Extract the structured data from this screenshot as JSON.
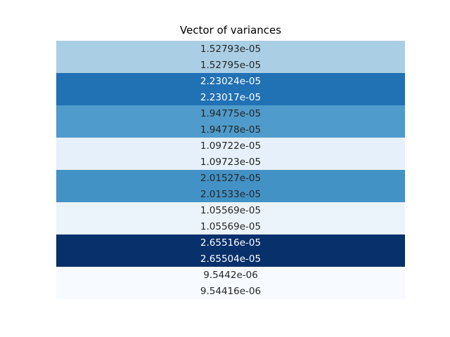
{
  "chart_data": {
    "type": "heatmap",
    "title": "Vector of variances",
    "values": [
      1.52793e-05,
      1.52795e-05,
      2.23024e-05,
      2.23017e-05,
      1.94775e-05,
      1.94778e-05,
      1.09722e-05,
      1.09723e-05,
      2.01527e-05,
      2.01533e-05,
      1.05569e-05,
      1.05569e-05,
      2.65516e-05,
      2.65504e-05,
      9.5442e-06,
      9.54416e-06
    ],
    "labels": [
      "1.52793e-05",
      "1.52795e-05",
      "2.23024e-05",
      "2.23017e-05",
      "1.94775e-05",
      "1.94778e-05",
      "1.09722e-05",
      "1.09723e-05",
      "2.01527e-05",
      "2.01533e-05",
      "1.05569e-05",
      "1.05569e-05",
      "2.65516e-05",
      "2.65504e-05",
      "9.5442e-06",
      "9.54416e-06"
    ],
    "colormap": "Blues",
    "colorbar": false,
    "grid": false,
    "axes_visible": false
  }
}
